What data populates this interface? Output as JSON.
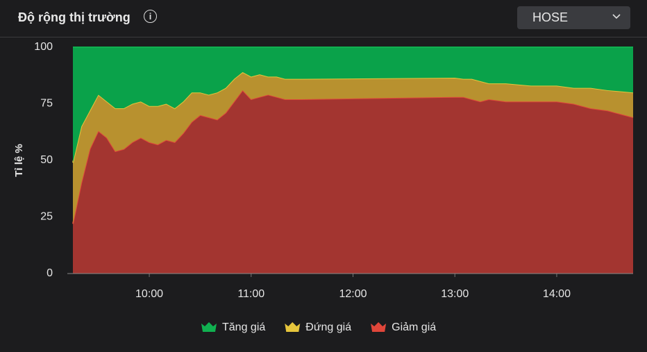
{
  "header": {
    "title": "Độ rộng thị trường",
    "dropdown": "HOSE"
  },
  "chart_data": {
    "type": "stacked-area",
    "ylabel": "Tỉ lệ %",
    "x": [
      "09:15",
      "09:20",
      "09:25",
      "09:30",
      "09:35",
      "09:40",
      "09:45",
      "09:50",
      "09:55",
      "10:00",
      "10:05",
      "10:10",
      "10:15",
      "10:20",
      "10:25",
      "10:30",
      "10:35",
      "10:40",
      "10:45",
      "10:50",
      "10:55",
      "11:00",
      "11:05",
      "11:10",
      "11:15",
      "11:20",
      "11:30",
      "13:00",
      "13:05",
      "13:10",
      "13:15",
      "13:20",
      "13:30",
      "13:45",
      "14:00",
      "14:10",
      "14:15",
      "14:20",
      "14:30",
      "14:45"
    ],
    "series": [
      {
        "name": "Tăng giá",
        "color": "#0aa24a",
        "line_color": "#10b050",
        "values": [
          51,
          35,
          28,
          21,
          24,
          27,
          27,
          25,
          24,
          26,
          26,
          25,
          27,
          24,
          20,
          20,
          21,
          20,
          18,
          14,
          11,
          13,
          12,
          13,
          13,
          14,
          14,
          13.5,
          14,
          14,
          15,
          16,
          16,
          17,
          17,
          18,
          18,
          18,
          19,
          20
        ]
      },
      {
        "name": "Đứng giá",
        "color": "#b8912f",
        "line_color": "#e6c53c",
        "values": [
          27,
          25,
          17,
          16,
          16,
          19,
          18,
          17,
          16,
          16,
          17,
          16,
          15,
          14,
          13,
          10,
          10,
          12,
          11,
          10,
          8,
          10,
          10,
          8,
          9,
          9,
          9,
          8.5,
          8,
          9,
          9,
          7,
          8,
          7,
          7,
          7,
          8,
          9,
          9,
          11
        ]
      },
      {
        "name": "Giảm giá",
        "color": "#a33530",
        "line_color": "#e0463a",
        "values": [
          22,
          40,
          55,
          63,
          60,
          54,
          55,
          58,
          60,
          58,
          57,
          59,
          58,
          62,
          67,
          70,
          69,
          68,
          71,
          76,
          81,
          77,
          78,
          79,
          78,
          77,
          77,
          78,
          78,
          77,
          76,
          77,
          76,
          76,
          76,
          75,
          74,
          73,
          72,
          69
        ]
      }
    ],
    "xlim": [
      "09:15",
      "14:45"
    ],
    "xticks": [
      "10:00",
      "11:00",
      "12:00",
      "13:00",
      "14:00"
    ],
    "ylim": [
      0,
      100
    ],
    "yticks": [
      0,
      25,
      50,
      75,
      100
    ]
  }
}
